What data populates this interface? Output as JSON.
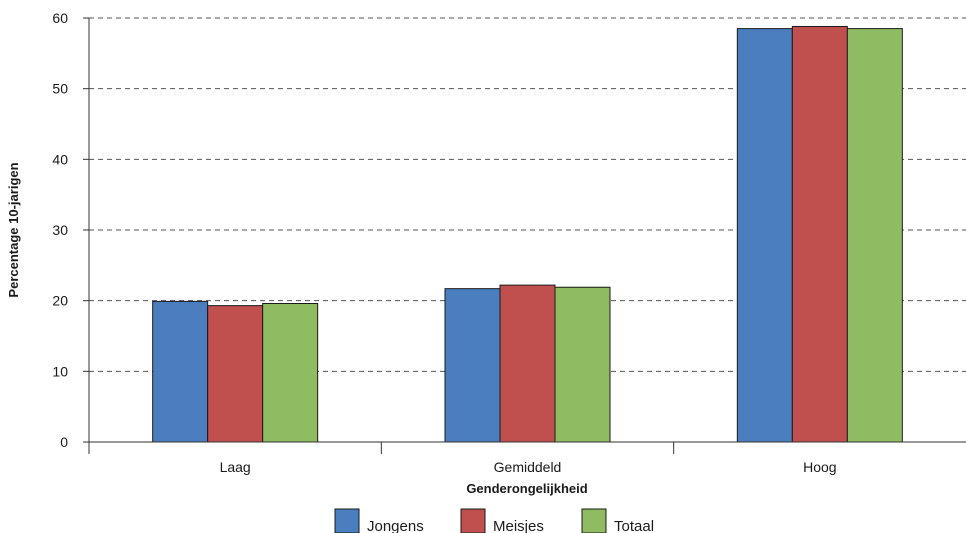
{
  "chart_data": {
    "type": "bar",
    "categories": [
      "Laag",
      "Gemiddeld",
      "Hoog"
    ],
    "series": [
      {
        "name": "Jongens",
        "values": [
          19.9,
          21.7,
          58.5
        ],
        "color": "#4a7ebf"
      },
      {
        "name": "Meisjes",
        "values": [
          19.3,
          22.2,
          58.8
        ],
        "color": "#c0504d"
      },
      {
        "name": "Totaal",
        "values": [
          19.6,
          21.9,
          58.5
        ],
        "color": "#8fbc62"
      }
    ],
    "title": "",
    "xlabel": "Genderongelijkheid",
    "ylabel": "Percentage 10-jarigen",
    "ylim": [
      0,
      60
    ],
    "yticks": [
      0,
      10,
      20,
      30,
      40,
      50,
      60
    ],
    "grid": true,
    "legend_position": "bottom"
  }
}
